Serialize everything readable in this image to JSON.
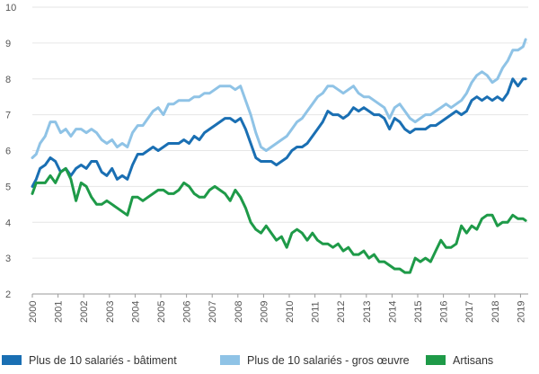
{
  "chart_data": {
    "type": "line",
    "title": "",
    "xlabel": "",
    "ylabel": "",
    "xlim": [
      2000,
      2019.3
    ],
    "ylim": [
      2,
      10
    ],
    "yticks": [
      2,
      3,
      4,
      5,
      6,
      7,
      8,
      9,
      10
    ],
    "xticks": [
      "2000",
      "2001",
      "2002",
      "2003",
      "2004",
      "2005",
      "2006",
      "2007",
      "2008",
      "2009",
      "2010",
      "2011",
      "2012",
      "2013",
      "2014",
      "2015",
      "2016",
      "2017",
      "2018",
      "2019"
    ],
    "grid": "horizontal",
    "legend_position": "bottom",
    "series": [
      {
        "name": "Plus de 10 salariés - bâtiment",
        "color": "#1a6fb3",
        "points": [
          [
            2000,
            5.0
          ],
          [
            2000.15,
            5.2
          ],
          [
            2000.3,
            5.5
          ],
          [
            2000.5,
            5.6
          ],
          [
            2000.7,
            5.8
          ],
          [
            2000.9,
            5.7
          ],
          [
            2001.1,
            5.4
          ],
          [
            2001.3,
            5.5
          ],
          [
            2001.5,
            5.3
          ],
          [
            2001.7,
            5.5
          ],
          [
            2001.9,
            5.6
          ],
          [
            2002.1,
            5.5
          ],
          [
            2002.3,
            5.7
          ],
          [
            2002.5,
            5.7
          ],
          [
            2002.7,
            5.4
          ],
          [
            2002.9,
            5.3
          ],
          [
            2003.1,
            5.5
          ],
          [
            2003.3,
            5.2
          ],
          [
            2003.5,
            5.3
          ],
          [
            2003.7,
            5.2
          ],
          [
            2003.9,
            5.6
          ],
          [
            2004.1,
            5.9
          ],
          [
            2004.3,
            5.9
          ],
          [
            2004.5,
            6.0
          ],
          [
            2004.7,
            6.1
          ],
          [
            2004.9,
            6.0
          ],
          [
            2005.1,
            6.1
          ],
          [
            2005.3,
            6.2
          ],
          [
            2005.5,
            6.2
          ],
          [
            2005.7,
            6.2
          ],
          [
            2005.9,
            6.3
          ],
          [
            2006.1,
            6.2
          ],
          [
            2006.3,
            6.4
          ],
          [
            2006.5,
            6.3
          ],
          [
            2006.7,
            6.5
          ],
          [
            2006.9,
            6.6
          ],
          [
            2007.1,
            6.7
          ],
          [
            2007.3,
            6.8
          ],
          [
            2007.5,
            6.9
          ],
          [
            2007.7,
            6.9
          ],
          [
            2007.9,
            6.8
          ],
          [
            2008.1,
            6.9
          ],
          [
            2008.3,
            6.6
          ],
          [
            2008.5,
            6.2
          ],
          [
            2008.7,
            5.8
          ],
          [
            2008.9,
            5.7
          ],
          [
            2009.1,
            5.7
          ],
          [
            2009.3,
            5.7
          ],
          [
            2009.5,
            5.6
          ],
          [
            2009.7,
            5.7
          ],
          [
            2009.9,
            5.8
          ],
          [
            2010.1,
            6.0
          ],
          [
            2010.3,
            6.1
          ],
          [
            2010.5,
            6.1
          ],
          [
            2010.7,
            6.2
          ],
          [
            2010.9,
            6.4
          ],
          [
            2011.1,
            6.6
          ],
          [
            2011.3,
            6.8
          ],
          [
            2011.5,
            7.1
          ],
          [
            2011.7,
            7.0
          ],
          [
            2011.9,
            7.0
          ],
          [
            2012.1,
            6.9
          ],
          [
            2012.3,
            7.0
          ],
          [
            2012.5,
            7.2
          ],
          [
            2012.7,
            7.1
          ],
          [
            2012.9,
            7.2
          ],
          [
            2013.1,
            7.1
          ],
          [
            2013.3,
            7.0
          ],
          [
            2013.5,
            7.0
          ],
          [
            2013.7,
            6.9
          ],
          [
            2013.9,
            6.6
          ],
          [
            2014.1,
            6.9
          ],
          [
            2014.3,
            6.8
          ],
          [
            2014.5,
            6.6
          ],
          [
            2014.7,
            6.5
          ],
          [
            2014.9,
            6.6
          ],
          [
            2015.1,
            6.6
          ],
          [
            2015.3,
            6.6
          ],
          [
            2015.5,
            6.7
          ],
          [
            2015.7,
            6.7
          ],
          [
            2015.9,
            6.8
          ],
          [
            2016.1,
            6.9
          ],
          [
            2016.3,
            7.0
          ],
          [
            2016.5,
            7.1
          ],
          [
            2016.7,
            7.0
          ],
          [
            2016.9,
            7.1
          ],
          [
            2017.1,
            7.4
          ],
          [
            2017.3,
            7.5
          ],
          [
            2017.5,
            7.4
          ],
          [
            2017.7,
            7.5
          ],
          [
            2017.9,
            7.4
          ],
          [
            2018.1,
            7.5
          ],
          [
            2018.3,
            7.4
          ],
          [
            2018.5,
            7.6
          ],
          [
            2018.7,
            8.0
          ],
          [
            2018.9,
            7.8
          ],
          [
            2019.1,
            8.0
          ],
          [
            2019.2,
            8.0
          ]
        ]
      },
      {
        "name": "Plus de 10 salariés - gros œuvre",
        "color": "#8fc3e6",
        "points": [
          [
            2000,
            5.8
          ],
          [
            2000.15,
            5.9
          ],
          [
            2000.3,
            6.2
          ],
          [
            2000.5,
            6.4
          ],
          [
            2000.7,
            6.8
          ],
          [
            2000.9,
            6.8
          ],
          [
            2001.1,
            6.5
          ],
          [
            2001.3,
            6.6
          ],
          [
            2001.5,
            6.4
          ],
          [
            2001.7,
            6.6
          ],
          [
            2001.9,
            6.6
          ],
          [
            2002.1,
            6.5
          ],
          [
            2002.3,
            6.6
          ],
          [
            2002.5,
            6.5
          ],
          [
            2002.7,
            6.3
          ],
          [
            2002.9,
            6.2
          ],
          [
            2003.1,
            6.3
          ],
          [
            2003.3,
            6.1
          ],
          [
            2003.5,
            6.2
          ],
          [
            2003.7,
            6.1
          ],
          [
            2003.9,
            6.5
          ],
          [
            2004.1,
            6.7
          ],
          [
            2004.3,
            6.7
          ],
          [
            2004.5,
            6.9
          ],
          [
            2004.7,
            7.1
          ],
          [
            2004.9,
            7.2
          ],
          [
            2005.1,
            7.0
          ],
          [
            2005.3,
            7.3
          ],
          [
            2005.5,
            7.3
          ],
          [
            2005.7,
            7.4
          ],
          [
            2005.9,
            7.4
          ],
          [
            2006.1,
            7.4
          ],
          [
            2006.3,
            7.5
          ],
          [
            2006.5,
            7.5
          ],
          [
            2006.7,
            7.6
          ],
          [
            2006.9,
            7.6
          ],
          [
            2007.1,
            7.7
          ],
          [
            2007.3,
            7.8
          ],
          [
            2007.5,
            7.8
          ],
          [
            2007.7,
            7.8
          ],
          [
            2007.9,
            7.7
          ],
          [
            2008.1,
            7.8
          ],
          [
            2008.3,
            7.4
          ],
          [
            2008.5,
            7.0
          ],
          [
            2008.7,
            6.5
          ],
          [
            2008.9,
            6.1
          ],
          [
            2009.1,
            6.0
          ],
          [
            2009.3,
            6.1
          ],
          [
            2009.5,
            6.2
          ],
          [
            2009.7,
            6.3
          ],
          [
            2009.9,
            6.4
          ],
          [
            2010.1,
            6.6
          ],
          [
            2010.3,
            6.8
          ],
          [
            2010.5,
            6.9
          ],
          [
            2010.7,
            7.1
          ],
          [
            2010.9,
            7.3
          ],
          [
            2011.1,
            7.5
          ],
          [
            2011.3,
            7.6
          ],
          [
            2011.5,
            7.8
          ],
          [
            2011.7,
            7.8
          ],
          [
            2011.9,
            7.7
          ],
          [
            2012.1,
            7.6
          ],
          [
            2012.3,
            7.7
          ],
          [
            2012.5,
            7.8
          ],
          [
            2012.7,
            7.6
          ],
          [
            2012.9,
            7.5
          ],
          [
            2013.1,
            7.5
          ],
          [
            2013.3,
            7.4
          ],
          [
            2013.5,
            7.3
          ],
          [
            2013.7,
            7.2
          ],
          [
            2013.9,
            6.9
          ],
          [
            2014.1,
            7.2
          ],
          [
            2014.3,
            7.3
          ],
          [
            2014.5,
            7.1
          ],
          [
            2014.7,
            6.9
          ],
          [
            2014.9,
            6.8
          ],
          [
            2015.1,
            6.9
          ],
          [
            2015.3,
            7.0
          ],
          [
            2015.5,
            7.0
          ],
          [
            2015.7,
            7.1
          ],
          [
            2015.9,
            7.2
          ],
          [
            2016.1,
            7.3
          ],
          [
            2016.3,
            7.2
          ],
          [
            2016.5,
            7.3
          ],
          [
            2016.7,
            7.4
          ],
          [
            2016.9,
            7.6
          ],
          [
            2017.1,
            7.9
          ],
          [
            2017.3,
            8.1
          ],
          [
            2017.5,
            8.2
          ],
          [
            2017.7,
            8.1
          ],
          [
            2017.9,
            7.9
          ],
          [
            2018.1,
            8.0
          ],
          [
            2018.3,
            8.3
          ],
          [
            2018.5,
            8.5
          ],
          [
            2018.7,
            8.8
          ],
          [
            2018.9,
            8.8
          ],
          [
            2019.1,
            8.9
          ],
          [
            2019.2,
            9.1
          ]
        ]
      },
      {
        "name": "Artisans",
        "color": "#1e9a48",
        "points": [
          [
            2000,
            4.8
          ],
          [
            2000.15,
            5.1
          ],
          [
            2000.3,
            5.1
          ],
          [
            2000.5,
            5.1
          ],
          [
            2000.7,
            5.3
          ],
          [
            2000.9,
            5.1
          ],
          [
            2001.1,
            5.4
          ],
          [
            2001.3,
            5.5
          ],
          [
            2001.5,
            5.2
          ],
          [
            2001.7,
            4.6
          ],
          [
            2001.9,
            5.1
          ],
          [
            2002.1,
            5.0
          ],
          [
            2002.3,
            4.7
          ],
          [
            2002.5,
            4.5
          ],
          [
            2002.7,
            4.5
          ],
          [
            2002.9,
            4.6
          ],
          [
            2003.1,
            4.5
          ],
          [
            2003.3,
            4.4
          ],
          [
            2003.5,
            4.3
          ],
          [
            2003.7,
            4.2
          ],
          [
            2003.9,
            4.7
          ],
          [
            2004.1,
            4.7
          ],
          [
            2004.3,
            4.6
          ],
          [
            2004.5,
            4.7
          ],
          [
            2004.7,
            4.8
          ],
          [
            2004.9,
            4.9
          ],
          [
            2005.1,
            4.9
          ],
          [
            2005.3,
            4.8
          ],
          [
            2005.5,
            4.8
          ],
          [
            2005.7,
            4.9
          ],
          [
            2005.9,
            5.1
          ],
          [
            2006.1,
            5.0
          ],
          [
            2006.3,
            4.8
          ],
          [
            2006.5,
            4.7
          ],
          [
            2006.7,
            4.7
          ],
          [
            2006.9,
            4.9
          ],
          [
            2007.1,
            5.0
          ],
          [
            2007.3,
            4.9
          ],
          [
            2007.5,
            4.8
          ],
          [
            2007.7,
            4.6
          ],
          [
            2007.9,
            4.9
          ],
          [
            2008.1,
            4.7
          ],
          [
            2008.3,
            4.4
          ],
          [
            2008.5,
            4.0
          ],
          [
            2008.7,
            3.8
          ],
          [
            2008.9,
            3.7
          ],
          [
            2009.1,
            3.9
          ],
          [
            2009.3,
            3.7
          ],
          [
            2009.5,
            3.5
          ],
          [
            2009.7,
            3.6
          ],
          [
            2009.9,
            3.3
          ],
          [
            2010.1,
            3.7
          ],
          [
            2010.3,
            3.8
          ],
          [
            2010.5,
            3.7
          ],
          [
            2010.7,
            3.5
          ],
          [
            2010.9,
            3.7
          ],
          [
            2011.1,
            3.5
          ],
          [
            2011.3,
            3.4
          ],
          [
            2011.5,
            3.4
          ],
          [
            2011.7,
            3.3
          ],
          [
            2011.9,
            3.4
          ],
          [
            2012.1,
            3.2
          ],
          [
            2012.3,
            3.3
          ],
          [
            2012.5,
            3.1
          ],
          [
            2012.7,
            3.1
          ],
          [
            2012.9,
            3.2
          ],
          [
            2013.1,
            3.0
          ],
          [
            2013.3,
            3.1
          ],
          [
            2013.5,
            2.9
          ],
          [
            2013.7,
            2.9
          ],
          [
            2013.9,
            2.8
          ],
          [
            2014.1,
            2.7
          ],
          [
            2014.3,
            2.7
          ],
          [
            2014.5,
            2.6
          ],
          [
            2014.7,
            2.6
          ],
          [
            2014.9,
            3.0
          ],
          [
            2015.1,
            2.9
          ],
          [
            2015.3,
            3.0
          ],
          [
            2015.5,
            2.9
          ],
          [
            2015.7,
            3.2
          ],
          [
            2015.9,
            3.5
          ],
          [
            2016.1,
            3.3
          ],
          [
            2016.3,
            3.3
          ],
          [
            2016.5,
            3.4
          ],
          [
            2016.7,
            3.9
          ],
          [
            2016.9,
            3.7
          ],
          [
            2017.1,
            3.9
          ],
          [
            2017.3,
            3.8
          ],
          [
            2017.5,
            4.1
          ],
          [
            2017.7,
            4.2
          ],
          [
            2017.9,
            4.2
          ],
          [
            2018.1,
            3.9
          ],
          [
            2018.3,
            4.0
          ],
          [
            2018.5,
            4.0
          ],
          [
            2018.7,
            4.2
          ],
          [
            2018.9,
            4.1
          ],
          [
            2019.1,
            4.1
          ],
          [
            2019.2,
            4.05
          ]
        ]
      }
    ]
  }
}
